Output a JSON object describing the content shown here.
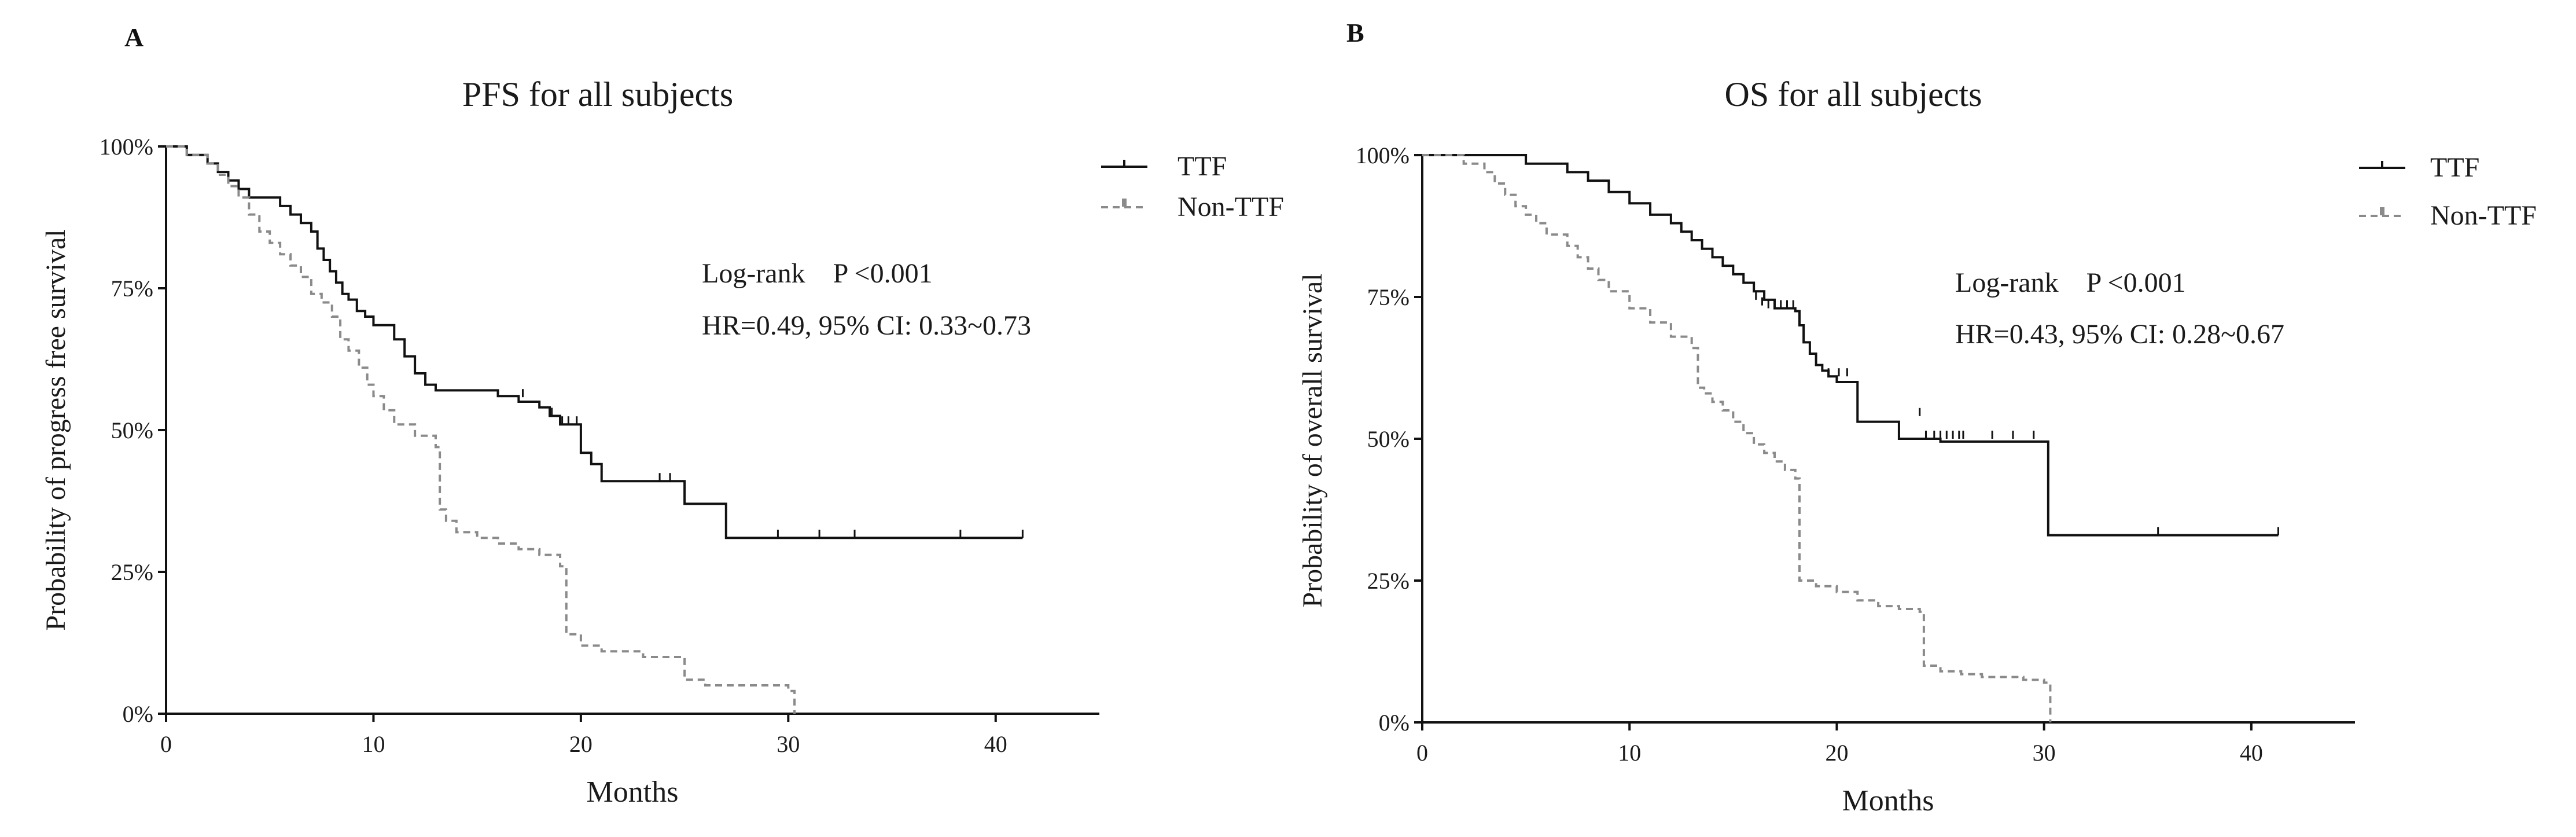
{
  "figure": {
    "colors": {
      "ttf": "#111111",
      "non_ttf": "#8a8a8a",
      "axis": "#111111",
      "text": "#1a1a1a"
    }
  },
  "chart_data": [
    {
      "panel_label": "A",
      "type": "line",
      "subtype": "kaplan-meier",
      "title": "PFS for all subjects",
      "xlabel": "Months",
      "ylabel": "Probability of progress free survival",
      "xlim": [
        0,
        45
      ],
      "ylim": [
        0,
        100
      ],
      "xticks": [
        0,
        10,
        20,
        30,
        40
      ],
      "xtick_labels": [
        "0",
        "10",
        "20",
        "30",
        "40"
      ],
      "yticks": [
        0,
        25,
        50,
        75,
        100
      ],
      "ytick_labels": [
        "0%",
        "25%",
        "50%",
        "75%",
        "100%"
      ],
      "legend": [
        "TTF",
        "Non-TTF"
      ],
      "legend_position": "top-right",
      "annotations": [
        "Log-rank    P <0.001",
        "HR=0.49, 95% CI: 0.33~0.73"
      ],
      "series": [
        {
          "name": "TTF",
          "style": "solid",
          "steps": [
            [
              0,
              100
            ],
            [
              1,
              98.5
            ],
            [
              2,
              97
            ],
            [
              2.5,
              95.5
            ],
            [
              3,
              94
            ],
            [
              3.5,
              92.5
            ],
            [
              4,
              91
            ],
            [
              5.5,
              89.5
            ],
            [
              6,
              88
            ],
            [
              6.5,
              86.5
            ],
            [
              7,
              85
            ],
            [
              7.3,
              82
            ],
            [
              7.6,
              80
            ],
            [
              7.9,
              78
            ],
            [
              8.2,
              76
            ],
            [
              8.5,
              74
            ],
            [
              8.8,
              73
            ],
            [
              9.2,
              71
            ],
            [
              9.6,
              70
            ],
            [
              10,
              68.5
            ],
            [
              11,
              66
            ],
            [
              11.5,
              63
            ],
            [
              12,
              60
            ],
            [
              12.5,
              58
            ],
            [
              13,
              57
            ],
            [
              16,
              56
            ],
            [
              17,
              55
            ],
            [
              18,
              54
            ],
            [
              18.5,
              52.5
            ],
            [
              19,
              51
            ],
            [
              20,
              46
            ],
            [
              20.5,
              44
            ],
            [
              21,
              41
            ],
            [
              25,
              37
            ],
            [
              27,
              31
            ],
            [
              41.3,
              31
            ]
          ],
          "censors": [
            [
              17.2,
              55.8
            ],
            [
              18.6,
              52.5
            ],
            [
              19.1,
              51
            ],
            [
              19.4,
              51
            ],
            [
              19.8,
              51
            ],
            [
              23.8,
              41
            ],
            [
              24.3,
              41
            ],
            [
              29.5,
              31
            ],
            [
              31.5,
              31
            ],
            [
              33.2,
              31
            ],
            [
              38.3,
              31
            ],
            [
              41.3,
              31
            ]
          ]
        },
        {
          "name": "Non-TTF",
          "style": "dashed",
          "steps": [
            [
              0,
              100
            ],
            [
              1,
              98.5
            ],
            [
              2,
              97
            ],
            [
              2.5,
              95
            ],
            [
              3,
              93
            ],
            [
              3.5,
              91
            ],
            [
              4,
              88
            ],
            [
              4.5,
              85
            ],
            [
              5,
              83
            ],
            [
              5.5,
              81
            ],
            [
              6,
              79
            ],
            [
              6.5,
              77
            ],
            [
              7,
              74
            ],
            [
              7.5,
              72.5
            ],
            [
              8,
              70
            ],
            [
              8.4,
              66
            ],
            [
              8.8,
              64
            ],
            [
              9.3,
              61
            ],
            [
              9.7,
              58
            ],
            [
              10,
              56
            ],
            [
              10.5,
              53.5
            ],
            [
              11,
              51
            ],
            [
              12,
              49
            ],
            [
              13,
              47
            ],
            [
              13.2,
              36
            ],
            [
              13.5,
              34
            ],
            [
              14,
              32
            ],
            [
              15,
              31
            ],
            [
              16,
              30
            ],
            [
              17,
              29
            ],
            [
              18,
              28
            ],
            [
              19,
              26
            ],
            [
              19.3,
              14
            ],
            [
              20,
              12
            ],
            [
              21,
              11
            ],
            [
              23,
              10
            ],
            [
              25,
              6
            ],
            [
              26,
              5
            ],
            [
              27,
              5
            ],
            [
              28,
              5
            ],
            [
              30,
              4
            ],
            [
              30.3,
              0
            ]
          ],
          "censors": []
        }
      ]
    },
    {
      "panel_label": "B",
      "type": "line",
      "subtype": "kaplan-meier",
      "title": "OS for all subjects",
      "xlabel": "Months",
      "ylabel": "Probability of overall survival",
      "xlim": [
        0,
        45
      ],
      "ylim": [
        0,
        100
      ],
      "xticks": [
        0,
        10,
        20,
        30,
        40
      ],
      "xtick_labels": [
        "0",
        "10",
        "20",
        "30",
        "40"
      ],
      "yticks": [
        0,
        25,
        50,
        75,
        100
      ],
      "ytick_labels": [
        "0%",
        "25%",
        "50%",
        "75%",
        "100%"
      ],
      "legend": [
        "TTF",
        "Non-TTF"
      ],
      "legend_position": "top-right",
      "annotations": [
        "Log-rank    P <0.001",
        "HR=0.43, 95% CI: 0.28~0.67"
      ],
      "series": [
        {
          "name": "TTF",
          "style": "solid",
          "steps": [
            [
              0,
              100
            ],
            [
              5,
              98.5
            ],
            [
              7,
              97
            ],
            [
              8,
              95.5
            ],
            [
              9,
              93.5
            ],
            [
              10,
              91.5
            ],
            [
              11,
              89.5
            ],
            [
              12,
              88
            ],
            [
              12.5,
              86.5
            ],
            [
              13,
              85
            ],
            [
              13.5,
              83.5
            ],
            [
              14,
              82
            ],
            [
              14.5,
              80.5
            ],
            [
              15,
              79
            ],
            [
              15.5,
              77.5
            ],
            [
              16,
              76
            ],
            [
              16.5,
              74.5
            ],
            [
              17,
              73
            ],
            [
              18,
              72.5
            ],
            [
              18.2,
              70
            ],
            [
              18.4,
              67
            ],
            [
              18.7,
              65
            ],
            [
              19,
              63
            ],
            [
              19.3,
              62
            ],
            [
              19.6,
              61
            ],
            [
              20,
              60
            ],
            [
              21,
              53
            ],
            [
              23,
              50
            ],
            [
              25,
              49.5
            ],
            [
              30,
              49.5
            ],
            [
              30.2,
              33
            ],
            [
              41.3,
              33
            ]
          ],
          "censors": [
            [
              16.1,
              74.5
            ],
            [
              16.4,
              73.5
            ],
            [
              16.7,
              73
            ],
            [
              17,
              73
            ],
            [
              17.3,
              73
            ],
            [
              17.6,
              73
            ],
            [
              17.9,
              73
            ],
            [
              19.6,
              61
            ],
            [
              20.1,
              61
            ],
            [
              20.5,
              61
            ],
            [
              24,
              54
            ],
            [
              24.3,
              50
            ],
            [
              24.7,
              50
            ],
            [
              25,
              50
            ],
            [
              25.3,
              50
            ],
            [
              25.6,
              50
            ],
            [
              25.9,
              50
            ],
            [
              26.1,
              50
            ],
            [
              27.5,
              50
            ],
            [
              28.5,
              50
            ],
            [
              29.5,
              50
            ],
            [
              35.5,
              33
            ],
            [
              41.3,
              33
            ]
          ]
        },
        {
          "name": "Non-TTF",
          "style": "dashed",
          "steps": [
            [
              0,
              100
            ],
            [
              2,
              98.5
            ],
            [
              3,
              97
            ],
            [
              3.5,
              95
            ],
            [
              4,
              93
            ],
            [
              4.5,
              91
            ],
            [
              5,
              89.5
            ],
            [
              5.5,
              88
            ],
            [
              6,
              86
            ],
            [
              7,
              84
            ],
            [
              7.5,
              82
            ],
            [
              8,
              80
            ],
            [
              8.5,
              78
            ],
            [
              9,
              76
            ],
            [
              10,
              73
            ],
            [
              11,
              70.5
            ],
            [
              12,
              68
            ],
            [
              13,
              66
            ],
            [
              13.3,
              59
            ],
            [
              13.6,
              58
            ],
            [
              14,
              56.5
            ],
            [
              14.5,
              55
            ],
            [
              15,
              53
            ],
            [
              15.5,
              51
            ],
            [
              16,
              49
            ],
            [
              16.5,
              47.5
            ],
            [
              17,
              46
            ],
            [
              17.5,
              44.5
            ],
            [
              18,
              43
            ],
            [
              18.2,
              25
            ],
            [
              19,
              24
            ],
            [
              20,
              23
            ],
            [
              21,
              21.5
            ],
            [
              22,
              20.5
            ],
            [
              23,
              20
            ],
            [
              24,
              19.5
            ],
            [
              24.2,
              10
            ],
            [
              25,
              9
            ],
            [
              26,
              8.5
            ],
            [
              27,
              8
            ],
            [
              29,
              7.5
            ],
            [
              30,
              7
            ],
            [
              30.3,
              0
            ]
          ],
          "censors": []
        }
      ]
    }
  ]
}
